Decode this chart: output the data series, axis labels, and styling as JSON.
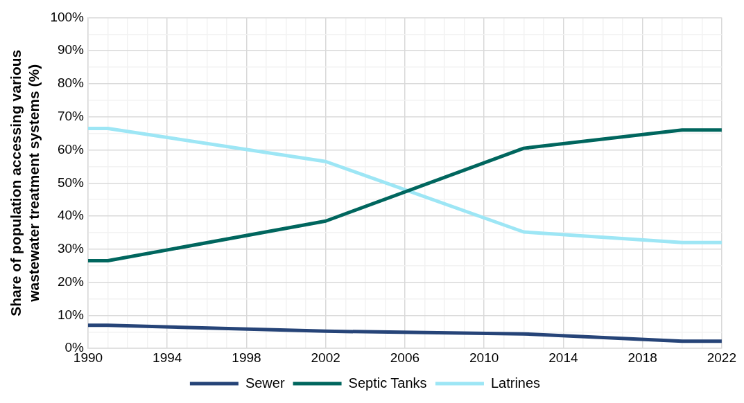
{
  "chart_data": {
    "type": "line",
    "ylabel": "Share of population accessing various wastewater treatment systems (%)",
    "x": [
      1990,
      1991,
      2002,
      2012,
      2020,
      2022
    ],
    "series": [
      {
        "name": "Sewer",
        "color": "#264478",
        "values": [
          7,
          7,
          5.2,
          4.4,
          2.2,
          2.2
        ]
      },
      {
        "name": "Septic Tanks",
        "color": "#00665e",
        "values": [
          26.5,
          26.5,
          38.5,
          60.5,
          66,
          66
        ]
      },
      {
        "name": "Latrines",
        "color": "#9de6f5",
        "values": [
          66.5,
          66.5,
          56.5,
          35.2,
          32,
          32
        ]
      }
    ],
    "xlim": [
      1990,
      2022
    ],
    "xticks": [
      1990,
      {
        "value": 1991,
        "label": null
      },
      {
        "value": 1992,
        "label": null
      },
      {
        "value": 1993,
        "label": null
      },
      1994,
      {
        "value": 1995,
        "label": null
      },
      {
        "value": 1996,
        "label": null
      },
      {
        "value": 1997,
        "label": null
      },
      1998,
      {
        "value": 1999,
        "label": null
      },
      {
        "value": 2000,
        "label": null
      },
      {
        "value": 2001,
        "label": null
      },
      2002,
      {
        "value": 2003,
        "label": null
      },
      {
        "value": 2004,
        "label": null
      },
      {
        "value": 2005,
        "label": null
      },
      2006,
      {
        "value": 2007,
        "label": null
      },
      {
        "value": 2008,
        "label": null
      },
      {
        "value": 2009,
        "label": null
      },
      2010,
      {
        "value": 2011,
        "label": null
      },
      {
        "value": 2012,
        "label": null
      },
      {
        "value": 2013,
        "label": null
      },
      2014,
      {
        "value": 2015,
        "label": null
      },
      {
        "value": 2016,
        "label": null
      },
      {
        "value": 2017,
        "label": null
      },
      2018,
      {
        "value": 2019,
        "label": null
      },
      {
        "value": 2020,
        "label": null
      },
      {
        "value": 2021,
        "label": null
      },
      2022
    ],
    "ylim": [
      0,
      100
    ],
    "yticks": [
      {
        "value": 0,
        "label": "0%"
      },
      {
        "value": 5,
        "label": null
      },
      {
        "value": 10,
        "label": "10%"
      },
      {
        "value": 15,
        "label": null
      },
      {
        "value": 20,
        "label": "20%"
      },
      {
        "value": 25,
        "label": null
      },
      {
        "value": 30,
        "label": "30%"
      },
      {
        "value": 35,
        "label": null
      },
      {
        "value": 40,
        "label": "40%"
      },
      {
        "value": 45,
        "label": null
      },
      {
        "value": 50,
        "label": "50%"
      },
      {
        "value": 55,
        "label": null
      },
      {
        "value": 60,
        "label": "60%"
      },
      {
        "value": 65,
        "label": null
      },
      {
        "value": 70,
        "label": "70%"
      },
      {
        "value": 75,
        "label": null
      },
      {
        "value": 80,
        "label": "80%"
      },
      {
        "value": 85,
        "label": null
      },
      {
        "value": 90,
        "label": "90%"
      },
      {
        "value": 95,
        "label": null
      },
      {
        "value": 100,
        "label": "100%"
      }
    ],
    "grid": true,
    "legend": "bottom",
    "marker": "none",
    "line_style": "solid"
  }
}
